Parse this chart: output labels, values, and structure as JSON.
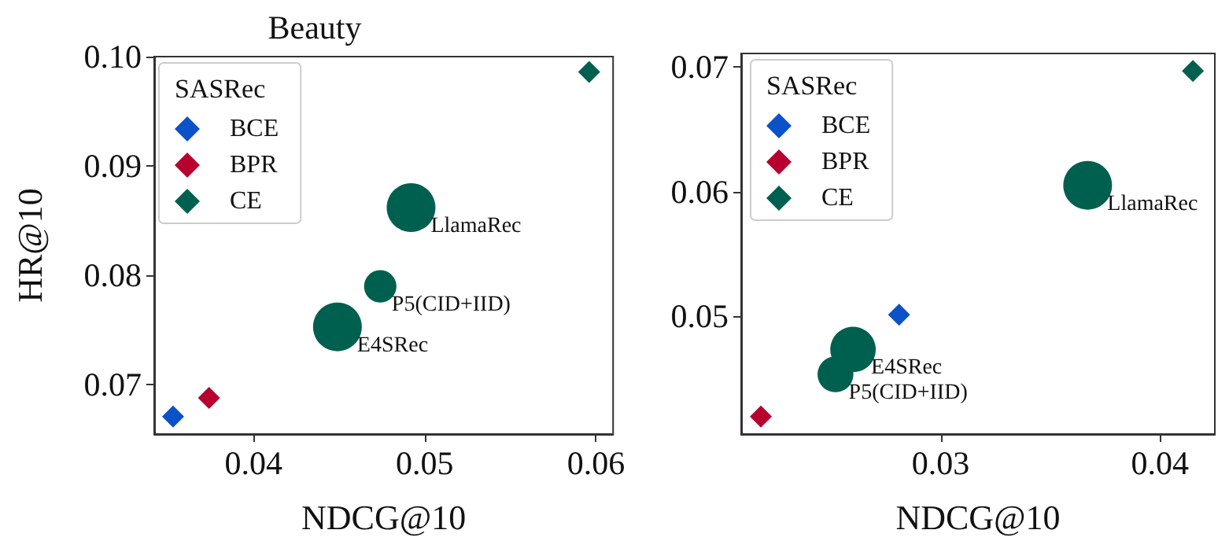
{
  "chart_data": [
    {
      "type": "scatter",
      "title": "Beauty",
      "xlabel": "NDCG@10",
      "ylabel": "HR@10",
      "legend_title": "SASRec",
      "legend": "top left",
      "grid": false,
      "xlim": [
        0.0342,
        0.061
      ],
      "xticks": [
        0.04,
        0.05,
        0.06
      ],
      "ylim": [
        0.0655,
        0.1
      ],
      "yticks": [
        0.07,
        0.08,
        0.09,
        {
          "value": 0.1,
          "label": "0.10"
        }
      ],
      "series": [
        {
          "name": "BCE",
          "color": "#0b52c9",
          "marker": "diamond",
          "x": [
            0.0353
          ],
          "values": [
            0.0671
          ]
        },
        {
          "name": "BPR",
          "color": "#b8002e",
          "marker": "diamond",
          "x": [
            0.0374
          ],
          "values": [
            0.0688
          ]
        },
        {
          "name": "CE",
          "color": "#00604f",
          "marker": "diamond",
          "x": [
            0.0596
          ],
          "values": [
            0.0986
          ]
        },
        {
          "name": "LlamaRec",
          "type": "bubble",
          "color": "#00604f",
          "marker": "circle",
          "x": [
            0.0492
          ],
          "values": [
            0.0862
          ],
          "sizes": [
            1
          ]
        },
        {
          "name": "P5(CID+IID)",
          "type": "bubble",
          "color": "#00604f",
          "marker": "circle",
          "x": [
            0.0474
          ],
          "values": [
            0.079
          ],
          "sizes": [
            0.44
          ]
        },
        {
          "name": "E4SRec",
          "type": "bubble",
          "color": "#00604f",
          "marker": "circle",
          "x": [
            0.0449
          ],
          "values": [
            0.0753
          ],
          "sizes": [
            1
          ]
        }
      ]
    },
    {
      "type": "scatter",
      "xlabel": "NDCG@10",
      "legend_title": "SASRec",
      "legend": "top left",
      "grid": false,
      "xlim": [
        0.0209,
        0.0425
      ],
      "xticks": [
        0.03,
        0.04
      ],
      "ylim": [
        0.0405,
        0.0711
      ],
      "yticks": [
        0.05,
        0.06,
        0.07
      ],
      "series": [
        {
          "name": "BCE",
          "color": "#0b52c9",
          "marker": "diamond",
          "x": [
            0.0281
          ],
          "values": [
            0.0501
          ]
        },
        {
          "name": "BPR",
          "color": "#b8002e",
          "marker": "diamond",
          "x": [
            0.0218
          ],
          "values": [
            0.0419
          ]
        },
        {
          "name": "CE",
          "color": "#00604f",
          "marker": "diamond",
          "x": [
            0.0415
          ],
          "values": [
            0.0697
          ]
        },
        {
          "name": "LlamaRec",
          "type": "bubble",
          "color": "#00604f",
          "marker": "circle",
          "x": [
            0.0367
          ],
          "values": [
            0.0605
          ],
          "sizes": [
            1
          ]
        },
        {
          "name": "E4SRec",
          "type": "bubble",
          "color": "#00604f",
          "marker": "circle",
          "x": [
            0.026
          ],
          "values": [
            0.0473
          ],
          "sizes": [
            0.87
          ]
        },
        {
          "name": "P5(CID+IID)",
          "type": "bubble",
          "color": "#00604f",
          "marker": "circle",
          "x": [
            0.0252
          ],
          "values": [
            0.0453
          ],
          "sizes": [
            0.54
          ]
        }
      ]
    }
  ]
}
